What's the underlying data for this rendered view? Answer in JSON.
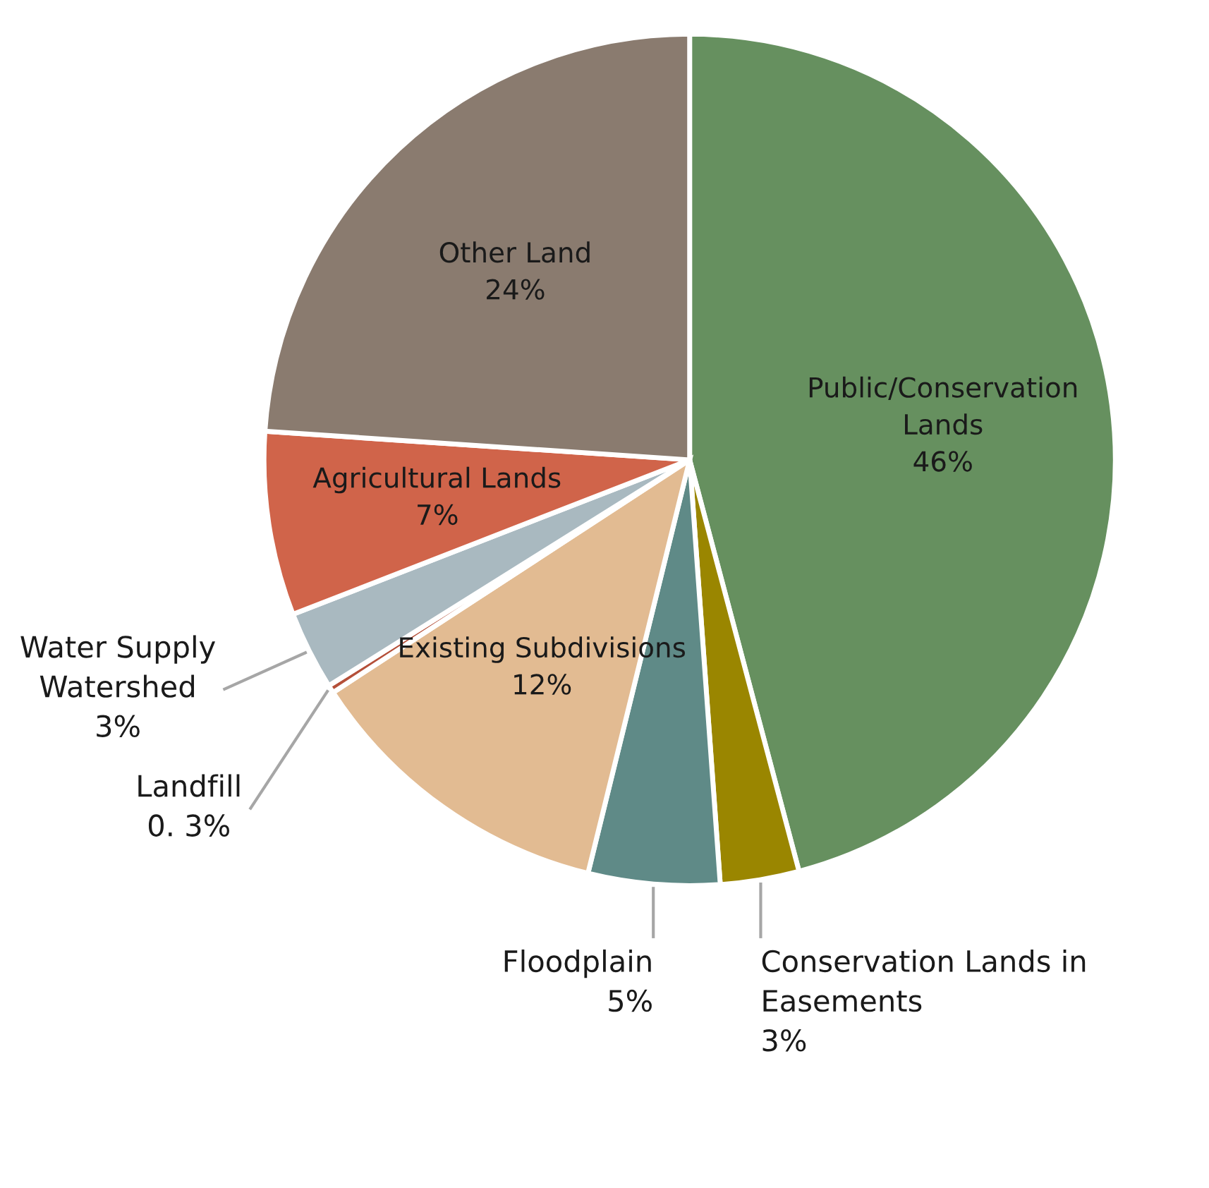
{
  "chart_data": {
    "type": "pie",
    "categories": [
      "Public/Conservation Lands",
      "Conservation Lands in Easements",
      "Floodplain",
      "Existing Subdivisions",
      "Landfill",
      "Water Supply Watershed",
      "Agricultural Lands",
      "Other Land"
    ],
    "values": [
      46,
      3,
      5,
      12,
      0.3,
      3,
      7,
      24
    ],
    "colors": [
      "#66905f",
      "#9a8600",
      "#5f8a87",
      "#e2bb92",
      "#b5503a",
      "#a9b9c0",
      "#d0644a",
      "#8a7b6f"
    ],
    "value_labels": [
      "46%",
      "3%",
      "5%",
      "12%",
      "0. 3%",
      "3%",
      "7%",
      "24%"
    ],
    "legend": false
  }
}
